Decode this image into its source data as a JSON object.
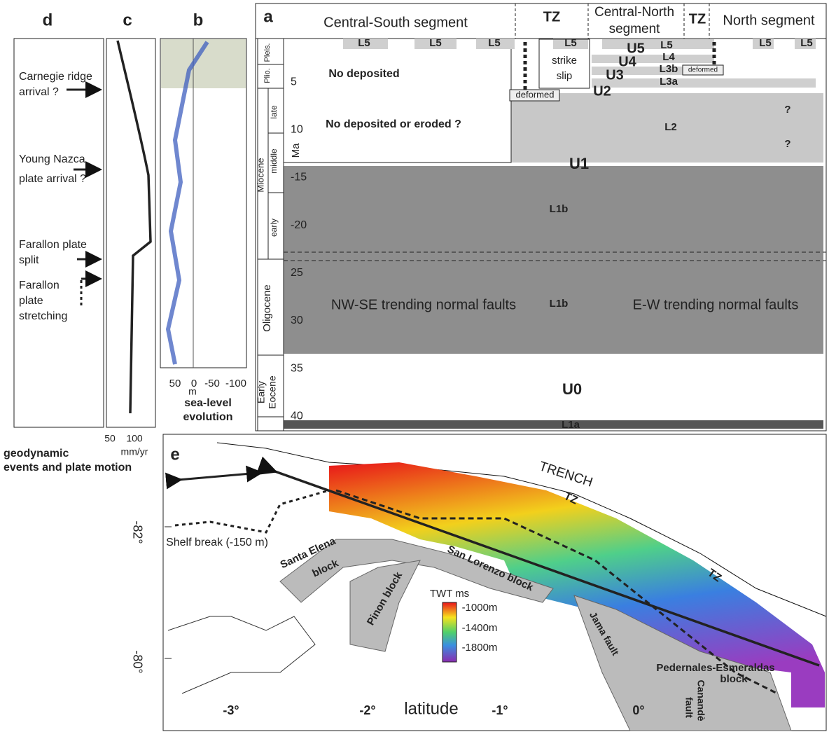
{
  "panel_d": {
    "label": "d",
    "events": [
      [
        "Carnegie ridge",
        "arrival ?"
      ],
      [
        "Young Nazca",
        "plate  arrival ?"
      ],
      [
        "Farallon plate",
        "split"
      ],
      [
        "Farallon",
        "plate",
        "stretching"
      ]
    ],
    "caption": [
      "geodynamic",
      "events and plate motion"
    ]
  },
  "panel_c": {
    "label": "c",
    "ticks": [
      "50",
      "100"
    ],
    "unit": "mm/yr"
  },
  "panel_b": {
    "label": "b",
    "ticks": [
      "50",
      "0",
      "-50",
      "-100"
    ],
    "unit": "m",
    "caption": [
      "sea-level",
      "evolution"
    ]
  },
  "panel_a": {
    "label": "a",
    "segments": [
      "Central-South segment",
      "TZ",
      [
        "Central-North",
        "segment"
      ],
      "TZ",
      "North segment"
    ],
    "epochs": [
      "Pleis.",
      "Plio.",
      "Miocene",
      "late",
      "middle",
      "early",
      "Oligocene",
      [
        "Early",
        "Eocene"
      ]
    ],
    "age_unit": "Ma",
    "ages": [
      "5",
      "10",
      "-15",
      "-20",
      "25",
      "30",
      "35",
      "40"
    ],
    "units": [
      "L5",
      "L5",
      "L5",
      "L5",
      "U5",
      "L5",
      "L4",
      "U4",
      "L3b",
      "U3",
      "L3a",
      "U2",
      "L2",
      "?",
      "?",
      "U1",
      "L1b",
      "L1b",
      "U0",
      "L1a",
      "L5",
      "L5"
    ],
    "notes": [
      "No deposited",
      "No deposited or eroded ?",
      [
        "strike",
        "slip"
      ],
      "deformed",
      "deformed",
      "NW-SE trending normal faults",
      "E-W trending normal faults"
    ]
  },
  "panel_e": {
    "label": "e",
    "labels": [
      "TRENCH",
      "TZ",
      "TZ",
      "Shelf break (-150 m)",
      [
        "Santa Elena",
        "block"
      ],
      "Pinon block",
      "San Lorenzo block",
      "Jama fault",
      [
        "Pedernales-Esmeraldas",
        "block"
      ],
      [
        "Canandè",
        "fault"
      ]
    ],
    "legend": {
      "title": "TWT ms",
      "entries": [
        "-1000m",
        "-1400m",
        "-1800m"
      ]
    },
    "x_axis": {
      "title": "latitude",
      "ticks": [
        "-3°",
        "-2°",
        "-1°",
        "0°"
      ]
    },
    "y_ticks": [
      "-82°",
      "-80°"
    ]
  }
}
